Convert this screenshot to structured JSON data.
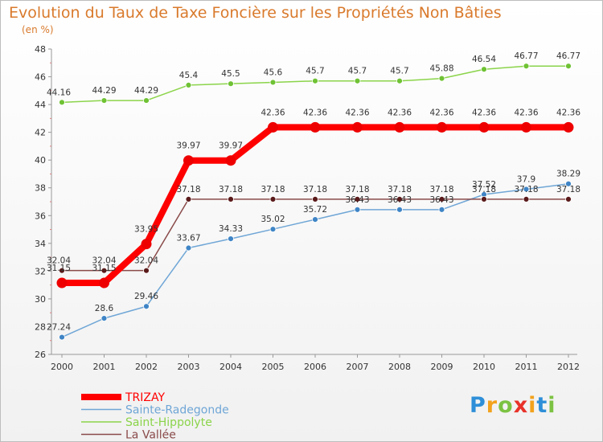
{
  "chart_data": {
    "type": "line",
    "title": "Evolution du Taux de Taxe Foncière sur les Propriétés Non Bâties",
    "unit_label": "(en %)",
    "xlabel": "",
    "ylabel": "",
    "ylim": [
      26,
      48
    ],
    "yticks": [
      26,
      28,
      30,
      32,
      34,
      36,
      38,
      40,
      42,
      44,
      46,
      48
    ],
    "grid": false,
    "legend_position": "bottom-left",
    "categories": [
      "2000",
      "2001",
      "2002",
      "2003",
      "2004",
      "2005",
      "2006",
      "2007",
      "2008",
      "2009",
      "2010",
      "2011",
      "2012"
    ],
    "series": [
      {
        "name": "Saint-Hippolyte",
        "color": "#8bd44a",
        "point_color": "#6fc234",
        "width": 1.5,
        "values": [
          44.16,
          44.29,
          44.29,
          45.4,
          45.5,
          45.6,
          45.7,
          45.7,
          45.7,
          45.88,
          46.54,
          46.77,
          46.77
        ],
        "labels": [
          "44.16",
          "44.29",
          "44.29",
          "45.4",
          "45.5",
          "45.6",
          "45.7",
          "45.7",
          "45.7",
          "45.88",
          "46.54",
          "46.77",
          "46.77"
        ]
      },
      {
        "name": "Sainte-Radegonde",
        "color": "#6fa6d6",
        "point_color": "#3f85c6",
        "width": 1.5,
        "values": [
          27.24,
          28.6,
          29.46,
          33.67,
          34.33,
          35.02,
          35.72,
          36.43,
          36.43,
          36.43,
          37.52,
          37.9,
          38.29
        ],
        "labels": [
          "27.24",
          "28.6",
          "29.46",
          "33.67",
          "34.33",
          "35.02",
          "35.72",
          "36.43",
          "36.43",
          "36.43",
          "37.52",
          "37.9",
          "38.29"
        ]
      },
      {
        "name": "La Vallée",
        "color": "#8a4a4a",
        "point_color": "#5a1a1a",
        "width": 1.5,
        "values": [
          32.04,
          32.04,
          32.04,
          37.18,
          37.18,
          37.18,
          37.18,
          37.18,
          37.18,
          37.18,
          37.18,
          37.18,
          37.18
        ],
        "labels": [
          "32.04",
          "32.04",
          "32.04",
          "37.18",
          "37.18",
          "37.18",
          "37.18",
          "37.18",
          "37.18",
          "37.18",
          "37.18",
          "37.18",
          "37.18"
        ]
      },
      {
        "name": "TRIZAY",
        "color": "#ff0000",
        "point_color": "#ee0000",
        "width": 8,
        "values": [
          31.15,
          31.15,
          33.95,
          39.97,
          39.97,
          42.36,
          42.36,
          42.36,
          42.36,
          42.36,
          42.36,
          42.36,
          42.36
        ],
        "labels": [
          "31.15",
          "31.15",
          "33.95",
          "39.97",
          "39.97",
          "42.36",
          "42.36",
          "42.36",
          "42.36",
          "42.36",
          "42.36",
          "42.36",
          "42.36"
        ]
      }
    ],
    "legend_order": [
      "TRIZAY",
      "Sainte-Radegonde",
      "Saint-Hippolyte",
      "La Vallée"
    ]
  },
  "logo": {
    "letters": [
      "P",
      "r",
      "o",
      "x",
      "i",
      "t",
      "i"
    ],
    "colors": [
      "#2e8fd8",
      "#f2a21c",
      "#7cc242",
      "#e8322a",
      "#f2a21c",
      "#2e8fd8",
      "#7cc242"
    ]
  }
}
